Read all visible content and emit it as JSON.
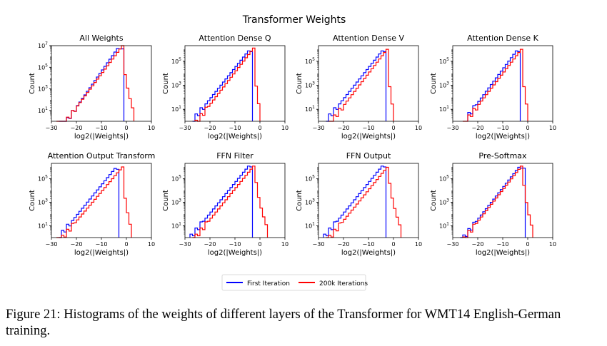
{
  "figure": {
    "suptitle": "Transformer Weights",
    "caption": "Figure 21: Histograms of the weights of different layers of the Transformer for WMT14 English-German training."
  },
  "colors": {
    "first": "#0000ff",
    "trained": "#ff0000"
  },
  "chart_data": {
    "type": "histogram-grid",
    "xlabel": "log2(|Weights|)",
    "ylabel": "Count",
    "xlim": [
      -30,
      10
    ],
    "x_ticks": [
      -30,
      -20,
      -10,
      0,
      10
    ],
    "y_scale": "log",
    "legend": {
      "placement": "bottom-center",
      "entries": [
        "First Iteration",
        "200k Iterations"
      ]
    },
    "series_names": [
      "First Iteration",
      "200k Iterations"
    ],
    "panels": [
      {
        "title": "All Weights",
        "ylim": [
          1,
          10000000
        ],
        "y_ticks": [
          1,
          3,
          5,
          7
        ],
        "first": {
          "xmin": -27,
          "peak_x": -3.5,
          "peak_logy": 6.9,
          "cut_x": -1.5,
          "slope": 0.33
        },
        "trained": {
          "xmin": -28,
          "peak_x": -2,
          "peak_logy": 7.0,
          "tail_x": 3,
          "tail_logy": 0.5,
          "slope": 0.31
        }
      },
      {
        "title": "Attention Dense Q",
        "ylim": [
          1,
          2000000
        ],
        "y_ticks": [
          1,
          3,
          5
        ],
        "first": {
          "xmin": -27,
          "peak_x": -4.5,
          "peak_logy": 6.0,
          "cut_x": -3.5,
          "slope": 0.26
        },
        "trained": {
          "xmin": -26,
          "peak_x": -3,
          "peak_logy": 6.1,
          "tail_x": 0,
          "tail_logy": 0.3,
          "slope": 0.27
        }
      },
      {
        "title": "Attention Dense V",
        "ylim": [
          1,
          2000000
        ],
        "y_ticks": [
          1,
          3,
          5
        ],
        "first": {
          "xmin": -27,
          "peak_x": -4.5,
          "peak_logy": 6.0,
          "cut_x": -3.5,
          "slope": 0.26
        },
        "trained": {
          "xmin": -26,
          "peak_x": -3,
          "peak_logy": 6.0,
          "tail_x": 0,
          "tail_logy": 0.3,
          "slope": 0.27
        }
      },
      {
        "title": "Attention Dense K",
        "ylim": [
          1,
          2000000
        ],
        "y_ticks": [
          1,
          3,
          5
        ],
        "first": {
          "xmin": -24,
          "peak_x": -4.5,
          "peak_logy": 6.0,
          "cut_x": -3.5,
          "slope": 0.28
        },
        "trained": {
          "xmin": -26,
          "peak_x": -3,
          "peak_logy": 6.0,
          "tail_x": 0,
          "tail_logy": 0.3,
          "slope": 0.27
        }
      },
      {
        "title": "Attention Output Transform",
        "ylim": [
          1,
          2000000
        ],
        "y_ticks": [
          1,
          3,
          5
        ],
        "first": {
          "xmin": -27,
          "peak_x": -4.5,
          "peak_logy": 6.0,
          "cut_x": -3.5,
          "slope": 0.26
        },
        "trained": {
          "xmin": -28,
          "peak_x": -2,
          "peak_logy": 6.0,
          "tail_x": 2,
          "tail_logy": 0.3,
          "slope": 0.25
        }
      },
      {
        "title": "FFN Filter",
        "ylim": [
          1,
          2000000
        ],
        "y_ticks": [
          1,
          3,
          5
        ],
        "first": {
          "xmin": -28,
          "peak_x": -4.5,
          "peak_logy": 6.2,
          "cut_x": -3.5,
          "slope": 0.26
        },
        "trained": {
          "xmin": -27,
          "peak_x": -2.5,
          "peak_logy": 6.2,
          "tail_x": 3,
          "tail_logy": 0.5,
          "slope": 0.26
        }
      },
      {
        "title": "FFN Output",
        "ylim": [
          1,
          2000000
        ],
        "y_ticks": [
          1,
          3,
          5
        ],
        "first": {
          "xmin": -28,
          "peak_x": -4.5,
          "peak_logy": 6.2,
          "cut_x": -3.5,
          "slope": 0.26
        },
        "trained": {
          "xmin": -27,
          "peak_x": -2.5,
          "peak_logy": 6.1,
          "tail_x": 3,
          "tail_logy": 0.5,
          "slope": 0.26
        }
      },
      {
        "title": "Pre-Softmax",
        "ylim": [
          1,
          2000000
        ],
        "y_ticks": [
          1,
          3,
          5
        ],
        "first": {
          "xmin": -27,
          "peak_x": -3.5,
          "peak_logy": 6.1,
          "cut_x": -1.5,
          "slope": 0.27
        },
        "trained": {
          "xmin": -26,
          "peak_x": -2.5,
          "peak_logy": 6.2,
          "tail_x": 2,
          "tail_logy": 0.3,
          "slope": 0.27
        }
      }
    ]
  }
}
